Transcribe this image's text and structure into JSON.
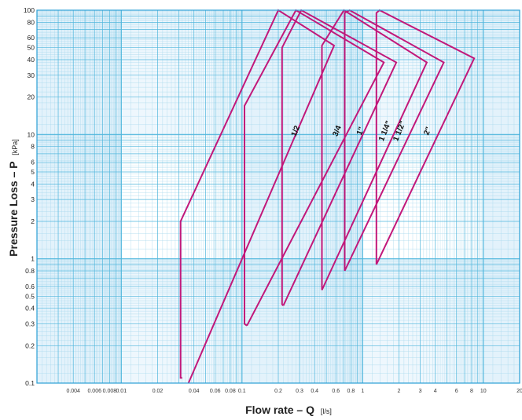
{
  "chart_data": {
    "type": "line",
    "title": "",
    "xlabel": "Flow rate – Q",
    "xunit": "[l/s]",
    "ylabel": "Pressure Loss – P",
    "yunit": "[kPa]",
    "xscale": "log",
    "yscale": "log",
    "xlim": [
      0.002,
      20
    ],
    "ylim": [
      0.1,
      100
    ],
    "grid": true,
    "x_tick_labels": [
      "0.004",
      "0.006",
      "0.008",
      "0.01",
      "0.02",
      "0.04",
      "0.06",
      "0.08",
      "0.1",
      "0.2",
      "0.3",
      "0.4",
      "0.6",
      "0.8",
      "1",
      "2",
      "3",
      "4",
      "6",
      "8",
      "10",
      "20"
    ],
    "y_tick_labels": [
      "0.1",
      "0.2",
      "0.3",
      "0.4",
      "0.5",
      "0.6",
      "0.8",
      "1",
      "2",
      "3",
      "4",
      "5",
      "6",
      "8",
      "10",
      "20",
      "30",
      "40",
      "50",
      "60",
      "80",
      "100"
    ],
    "series": [
      {
        "name": "1/2",
        "label_pos": [
          0.29,
          10.5
        ],
        "points": [
          [
            0.032,
            0.11
          ],
          [
            0.031,
            0.11
          ],
          [
            0.031,
            2.0
          ],
          [
            0.2,
            100
          ],
          [
            0.58,
            52
          ],
          [
            0.036,
            0.1
          ]
        ]
      },
      {
        "name": "3/4",
        "label_pos": [
          0.64,
          10.5
        ],
        "points": [
          [
            0.11,
            0.29
          ],
          [
            0.105,
            0.3
          ],
          [
            0.105,
            17
          ],
          [
            0.28,
            100
          ],
          [
            1.5,
            38
          ],
          [
            0.11,
            0.29
          ]
        ]
      },
      {
        "name": "1\"",
        "label_pos": [
          1.0,
          10.5
        ],
        "points": [
          [
            0.22,
            0.42
          ],
          [
            0.215,
            0.43
          ],
          [
            0.215,
            50
          ],
          [
            0.31,
            100
          ],
          [
            1.9,
            38
          ],
          [
            0.22,
            0.42
          ]
        ]
      },
      {
        "name": "1 1/4\"",
        "label_pos": [
          1.6,
          10.5
        ],
        "points": [
          [
            0.46,
            0.56
          ],
          [
            0.46,
            0.56
          ],
          [
            0.46,
            52
          ],
          [
            0.7,
            100
          ],
          [
            3.4,
            38
          ],
          [
            0.46,
            0.56
          ]
        ]
      },
      {
        "name": "1 1/2\"",
        "label_pos": [
          2.1,
          10.5
        ],
        "points": [
          [
            0.71,
            0.8
          ],
          [
            0.71,
            0.8
          ],
          [
            0.71,
            95
          ],
          [
            0.78,
            100
          ],
          [
            4.7,
            38
          ],
          [
            0.71,
            0.8
          ]
        ]
      },
      {
        "name": "2\"",
        "label_pos": [
          3.6,
          10.5
        ],
        "points": [
          [
            1.3,
            0.9
          ],
          [
            1.3,
            0.9
          ],
          [
            1.3,
            95
          ],
          [
            1.38,
            100
          ],
          [
            8.4,
            41
          ],
          [
            1.3,
            0.9
          ]
        ]
      }
    ],
    "colors": {
      "grid": "#4fb6dc",
      "grid_minor": "#a9d9ee",
      "band": "#e3f2fb",
      "series": "#c2187a"
    }
  }
}
